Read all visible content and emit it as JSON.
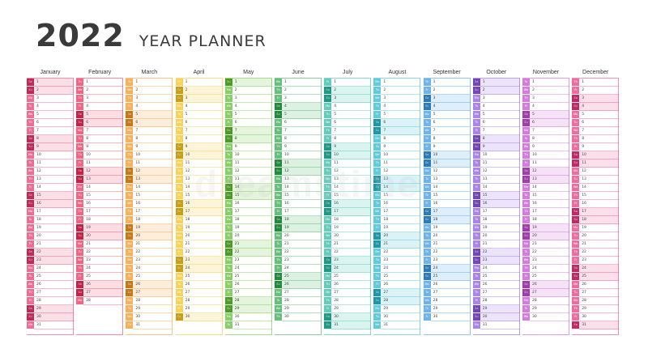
{
  "header": {
    "year": "2022",
    "subtitle": "YEAR PLANNER"
  },
  "weekday_abbrev": [
    "Mo",
    "Tu",
    "We",
    "Th",
    "Fr",
    "Sa",
    "Su"
  ],
  "months": [
    {
      "name": "January",
      "days": 31,
      "start": 5,
      "color": "#e8356a"
    },
    {
      "name": "February",
      "days": 28,
      "start": 1,
      "color": "#ec2b55"
    },
    {
      "name": "March",
      "days": 31,
      "start": 1,
      "color": "#f5921b"
    },
    {
      "name": "April",
      "days": 30,
      "start": 4,
      "color": "#f4c21a"
    },
    {
      "name": "May",
      "days": 31,
      "start": 6,
      "color": "#5cbd2c"
    },
    {
      "name": "June",
      "days": 30,
      "start": 2,
      "color": "#2ba84a"
    },
    {
      "name": "July",
      "days": 31,
      "start": 4,
      "color": "#27b9a4"
    },
    {
      "name": "August",
      "days": 31,
      "start": 0,
      "color": "#22b7cf"
    },
    {
      "name": "September",
      "days": 30,
      "start": 3,
      "color": "#3596e4"
    },
    {
      "name": "October",
      "days": 31,
      "start": 5,
      "color": "#8a56e0"
    },
    {
      "name": "November",
      "days": 30,
      "start": 1,
      "color": "#c44ad0"
    },
    {
      "name": "December",
      "days": 31,
      "start": 3,
      "color": "#e8357a"
    }
  ],
  "watermark": "dreamstime"
}
